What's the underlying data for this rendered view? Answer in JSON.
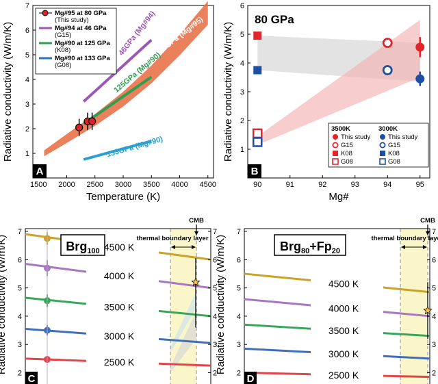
{
  "chart_data": [
    {
      "panel": "A",
      "type": "line",
      "ylabel": "Radiative conductivity (W/m/K)",
      "xlabel": "Temperature (K)",
      "xlim": [
        1400,
        4600
      ],
      "ylim": [
        0,
        7
      ],
      "xticks": [
        "1500",
        "2000",
        "2500",
        "3000",
        "3500",
        "4000",
        "4500"
      ],
      "yticks": [
        "1",
        "2",
        "3",
        "4",
        "5",
        "6",
        "7"
      ],
      "legend": [
        {
          "label": "Mg#95 at 80 GPa",
          "sub": "(This study)",
          "color": "#e8734a"
        },
        {
          "label": "Mg#94 at 46 GPa",
          "sub": "(G15)",
          "color": "#9b59b6"
        },
        {
          "label": "Mg#90 at 125 GPa",
          "sub": "(K08)",
          "color": "#2e9e4f"
        },
        {
          "label": "Mg#90 at 133 GPa",
          "sub": "(G08)",
          "color": "#2a73b8"
        }
      ],
      "series": [
        {
          "name": "80GPa (Mg#95)",
          "color": "#e8734a",
          "x": [
            1600,
            2000,
            2500,
            3000,
            3500,
            4000,
            4500
          ],
          "y": [
            1.0,
            1.6,
            2.35,
            3.2,
            4.2,
            5.4,
            6.7
          ]
        },
        {
          "name": "46GPa (Mg#94)",
          "color": "#9b59b6",
          "x": [
            2300,
            3500
          ],
          "y": [
            3.1,
            5.6
          ]
        },
        {
          "name": "125GPa (Mg#90)",
          "color": "#2e9e4f",
          "x": [
            2300,
            3500
          ],
          "y": [
            2.2,
            4.1
          ]
        },
        {
          "name": "133GPa (Mg#90)",
          "color": "#2aa0d0",
          "x": [
            2300,
            3500
          ],
          "y": [
            0.75,
            1.5
          ]
        }
      ],
      "points": {
        "x": [
          2220,
          2370,
          2450
        ],
        "y": [
          2.05,
          2.3,
          2.3
        ],
        "err": [
          0.35,
          0.35,
          0.35
        ]
      }
    },
    {
      "panel": "B",
      "type": "scatter",
      "title": "80 GPa",
      "ylabel": "Radiative conductivity (W/m/K)",
      "xlabel": "Mg#",
      "xlim": [
        89.7,
        95.3
      ],
      "ylim": [
        0,
        6
      ],
      "xticks": [
        "90",
        "91",
        "92",
        "93",
        "94",
        "95"
      ],
      "yticks": [
        "1",
        "2",
        "3",
        "4",
        "5",
        "6"
      ],
      "legend_headers": [
        "3500K",
        "3000K"
      ],
      "legend": [
        {
          "label": "This study",
          "red": "filled-circle",
          "blue": "filled-circle"
        },
        {
          "label": "G15",
          "red": "open-circle",
          "blue": "open-circle"
        },
        {
          "label": "K08",
          "red": "filled-square",
          "blue": "filled-square"
        },
        {
          "label": "G08",
          "red": "open-square",
          "blue": "open-square"
        }
      ],
      "points": [
        {
          "series": "3500K",
          "source": "This study",
          "x": 95,
          "y": 4.55,
          "err": 0.35
        },
        {
          "series": "3500K",
          "source": "G15",
          "x": 94,
          "y": 4.7
        },
        {
          "series": "3500K",
          "source": "K08",
          "x": 90,
          "y": 4.95
        },
        {
          "series": "3500K",
          "source": "G08",
          "x": 90,
          "y": 1.55
        },
        {
          "series": "3000K",
          "source": "This study",
          "x": 95,
          "y": 3.45,
          "err": 0.25
        },
        {
          "series": "3000K",
          "source": "G15",
          "x": 94,
          "y": 3.75
        },
        {
          "series": "3000K",
          "source": "K08",
          "x": 90,
          "y": 3.75
        },
        {
          "series": "3000K",
          "source": "G08",
          "x": 90,
          "y": 1.25
        }
      ]
    },
    {
      "panel": "C",
      "type": "line",
      "title": "Brg100",
      "ylabel": "Radiative conductivity (W/m/K)",
      "ylim": [
        1.6,
        7.0
      ],
      "yticks": [
        "2",
        "3",
        "4",
        "5",
        "6",
        "7"
      ],
      "right_ticks": [
        "2",
        "3",
        "4",
        "5",
        "6",
        "7"
      ],
      "annotation_cmb": "CMB",
      "annotation_tbl": "thermal boundary layer",
      "series": [
        {
          "name": "4500 K",
          "color": "#c9a227",
          "y_start": 6.9,
          "y_end": 6.0,
          "marker": 6.75,
          "err": 0.22
        },
        {
          "name": "4000 K",
          "color": "#a877c2",
          "y_start": 5.85,
          "y_end": 5.0,
          "marker": 5.7,
          "err": 0.28
        },
        {
          "name": "3500 K",
          "color": "#3aa65b",
          "y_start": 4.65,
          "y_end": 4.0,
          "marker": 4.55,
          "err": 0.22
        },
        {
          "name": "3000 K",
          "color": "#3f6fb8",
          "y_start": 3.55,
          "y_end": 3.05,
          "marker": 3.5,
          "err": 0.18
        },
        {
          "name": "2500 K",
          "color": "#e0454a",
          "y_start": 2.5,
          "y_end": 2.25,
          "marker": 2.47,
          "err": 0.12
        }
      ],
      "star": {
        "y": 5.2,
        "err_low": 3.6,
        "err_high": 6.05
      }
    },
    {
      "panel": "D",
      "type": "line",
      "title": "Brg80+Fp20",
      "ylabel": "Radiative conductivity (W/m/K)",
      "ylim": [
        1.6,
        7.0
      ],
      "yticks": [
        "2",
        "3",
        "4",
        "5",
        "6",
        "7"
      ],
      "right_ticks": [
        "2",
        "3",
        "4",
        "5",
        "6",
        "7"
      ],
      "annotation_cmb": "CMB",
      "annotation_tbl": "thermal boundary layer",
      "series": [
        {
          "name": "4500 K",
          "color": "#c9a227",
          "y_start": 5.5,
          "y_end": 4.85
        },
        {
          "name": "4000 K",
          "color": "#a877c2",
          "y_start": 4.6,
          "y_end": 4.0
        },
        {
          "name": "3500 K",
          "color": "#3aa65b",
          "y_start": 3.7,
          "y_end": 3.3
        },
        {
          "name": "3000 K",
          "color": "#3f6fb8",
          "y_start": 2.85,
          "y_end": 2.5
        },
        {
          "name": "2500 K",
          "color": "#e0454a",
          "y_start": 2.0,
          "y_end": 1.85
        }
      ],
      "star": {
        "y": 4.2,
        "err_low": 3.2,
        "err_high": 5.2
      }
    }
  ]
}
